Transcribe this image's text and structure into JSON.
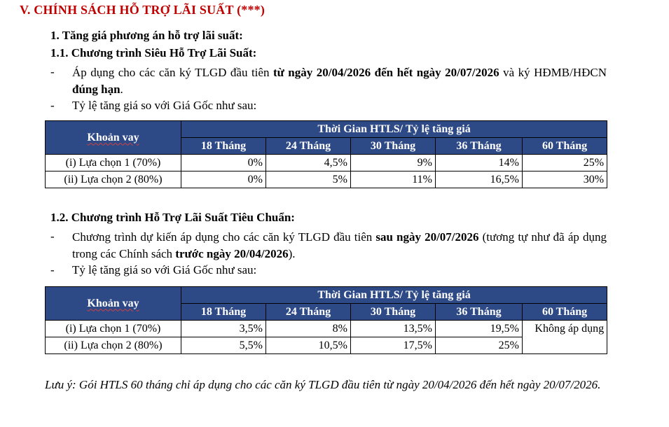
{
  "section_title": "V.  CHÍNH SÁCH HỖ TRỢ LÃI SUẤT (***)",
  "item1": "1.   Tăng giá phương án hỗ trợ lãi suất:",
  "sub1": {
    "title": "1.1. Chương trình Siêu Hỗ Trợ Lãi Suất:",
    "bullet1": {
      "pre": "Áp dụng cho các căn ký TLGD đầu tiên ",
      "bold": "từ ngày 20/04/2026 đến hết ngày 20/07/2026",
      "mid": " và ký HĐMB/HĐCN ",
      "bold2": "đúng hạn",
      "post": "."
    },
    "bullet2": "Tỷ lệ tăng giá so với Giá Gốc như sau:",
    "table": {
      "head_loan": "Khoản vay",
      "head_group": "Thời Gian HTLS/ Tỷ lệ tăng giá",
      "cols": [
        "18 Tháng",
        "24 Tháng",
        "30 Tháng",
        "36 Tháng",
        "60 Tháng"
      ],
      "rows": [
        {
          "label": "(i) Lựa chọn 1 (70%)",
          "values": [
            "0%",
            "4,5%",
            "9%",
            "14%",
            "25%"
          ]
        },
        {
          "label": "(ii) Lựa chọn 2 (80%)",
          "values": [
            "0%",
            "5%",
            "11%",
            "16,5%",
            "30%"
          ]
        }
      ]
    }
  },
  "sub2": {
    "title": "1.2. Chương trình Hỗ Trợ Lãi Suất Tiêu Chuẩn:",
    "bullet1": {
      "pre": "Chương trình dự kiến áp dụng cho các căn ký TLGD đầu tiên ",
      "bold": "sau ngày 20/07/2026",
      "mid": " (tương tự như đã áp dụng trong các Chính sách ",
      "bold2": "trước ngày 20/04/2026",
      "post": ")."
    },
    "bullet2": "Tỷ lệ tăng giá so với Giá Gốc như sau:",
    "table": {
      "head_loan": "Khoản vay",
      "head_group": "Thời Gian HTLS/ Tỷ lệ tăng giá",
      "cols": [
        "18 Tháng",
        "24 Tháng",
        "30 Tháng",
        "36 Tháng",
        "60 Tháng"
      ],
      "rows": [
        {
          "label": "(i) Lựa chọn 1 (70%)",
          "values": [
            "3,5%",
            "8%",
            "13,5%",
            "19,5%"
          ]
        },
        {
          "label": "(ii) Lựa chọn 2 (80%)",
          "values": [
            "5,5%",
            "10,5%",
            "17,5%",
            "25%"
          ]
        }
      ],
      "merged_60": "Không áp dụng"
    }
  },
  "note": "Lưu ý: Gói HTLS 60 tháng chỉ áp dụng cho các căn ký TLGD đầu tiên từ ngày 20/04/2026 đến hết ngày 20/07/2026."
}
